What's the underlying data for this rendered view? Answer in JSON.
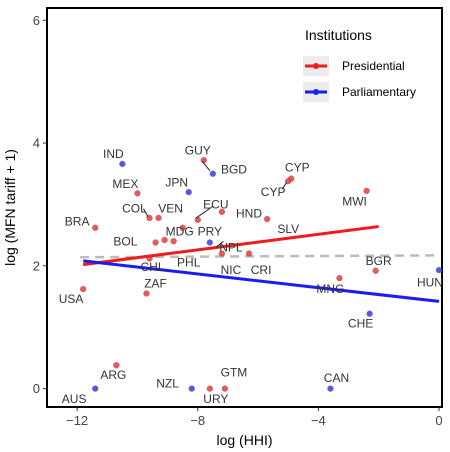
{
  "chart_data": {
    "type": "scatter",
    "xlabel": "log (HHI)",
    "ylabel": "log (MFN tariff + 1)",
    "xlim": [
      -13,
      0.1
    ],
    "ylim": [
      -0.3,
      6.2
    ],
    "xticks": [
      {
        "value": -12,
        "label": "−12"
      },
      {
        "value": -8,
        "label": "−8"
      },
      {
        "value": -4,
        "label": "−4"
      },
      {
        "value": 0,
        "label": "0"
      }
    ],
    "yticks": [
      {
        "value": 0,
        "label": "0"
      },
      {
        "value": 2,
        "label": "2"
      },
      {
        "value": 4,
        "label": "4"
      },
      {
        "value": 6,
        "label": "6"
      }
    ],
    "grid": false,
    "legend": {
      "title": "Institutions",
      "placement": "top-right",
      "entries": [
        {
          "name": "Presidential",
          "color": "#ee1c1c"
        },
        {
          "name": "Parliamentary",
          "color": "#1c1cee"
        }
      ]
    },
    "colors": {
      "Presidential": "#ee1c1c",
      "Parliamentary": "#1c1cee",
      "reference_line": "#bbbbbb"
    },
    "points": [
      {
        "label": "USA",
        "x": -11.8,
        "y": 1.62,
        "group": "Presidential",
        "lx": -12.2,
        "ly": 1.46
      },
      {
        "label": "BRA",
        "x": -11.4,
        "y": 2.62,
        "group": "Presidential",
        "lx": -12.0,
        "ly": 2.72
      },
      {
        "label": "ARG",
        "x": -10.7,
        "y": 0.38,
        "group": "Presidential",
        "lx": -10.8,
        "ly": 0.22
      },
      {
        "label": "AUS",
        "x": -11.4,
        "y": 0.0,
        "group": "Parliamentary",
        "lx": -12.1,
        "ly": -0.17
      },
      {
        "label": "IND",
        "x": -10.5,
        "y": 3.66,
        "group": "Parliamentary",
        "lx": -10.8,
        "ly": 3.82
      },
      {
        "label": "MEX",
        "x": -10.0,
        "y": 3.18,
        "group": "Presidential",
        "lx": -10.4,
        "ly": 3.33
      },
      {
        "label": "COL",
        "x": -9.6,
        "y": 2.78,
        "group": "Presidential",
        "lx": -10.1,
        "ly": 2.93
      },
      {
        "label": "VEN",
        "x": -9.3,
        "y": 2.78,
        "group": "Presidential",
        "lx": -8.9,
        "ly": 2.93
      },
      {
        "label": "JPN",
        "x": -8.3,
        "y": 3.2,
        "group": "Parliamentary",
        "lx": -8.7,
        "ly": 3.36
      },
      {
        "label": "GUY",
        "x": -7.8,
        "y": 3.72,
        "group": "Presidential",
        "lx": -8.0,
        "ly": 3.88
      },
      {
        "label": "BGD",
        "x": -7.5,
        "y": 3.5,
        "group": "Parliamentary",
        "lx": -6.8,
        "ly": 3.57
      },
      {
        "label": "ECU",
        "x": -8.0,
        "y": 2.75,
        "group": "Presidential",
        "lx": -7.4,
        "ly": 3.0
      },
      {
        "label": "HND",
        "x": -7.2,
        "y": 2.88,
        "group": "Presidential",
        "lx": -6.3,
        "ly": 2.85
      },
      {
        "label": "CYP",
        "x": -5.0,
        "y": 3.38,
        "group": "Presidential",
        "lx": -5.5,
        "ly": 3.2
      },
      {
        "label": "CYP",
        "x": -4.9,
        "y": 3.42,
        "group": "Presidential",
        "lx": -4.7,
        "ly": 3.6
      },
      {
        "label": "MWI",
        "x": -2.4,
        "y": 3.22,
        "group": "Presidential",
        "lx": -2.8,
        "ly": 3.05
      },
      {
        "label": "SLV",
        "x": -5.7,
        "y": 2.76,
        "group": "Presidential",
        "lx": -5.0,
        "ly": 2.6
      },
      {
        "label": "MDG",
        "x": -9.1,
        "y": 2.42,
        "group": "Presidential",
        "lx": -8.6,
        "ly": 2.56
      },
      {
        "label": "PRY",
        "x": -8.5,
        "y": 2.62,
        "group": "Presidential",
        "lx": -7.6,
        "ly": 2.56
      },
      {
        "label": "BOL",
        "x": -9.4,
        "y": 2.38,
        "group": "Presidential",
        "lx": -10.4,
        "ly": 2.4
      },
      {
        "label": "CHL",
        "x": -9.6,
        "y": 2.12,
        "group": "Presidential",
        "lx": -9.5,
        "ly": 1.98
      },
      {
        "label": "PHL",
        "x": -8.8,
        "y": 2.4,
        "group": "Presidential",
        "lx": -8.3,
        "ly": 2.05
      },
      {
        "label": "NPL",
        "x": -7.6,
        "y": 2.38,
        "group": "Parliamentary",
        "lx": -6.9,
        "ly": 2.3
      },
      {
        "label": "NIC",
        "x": -7.2,
        "y": 2.2,
        "group": "Presidential",
        "lx": -6.9,
        "ly": 1.93
      },
      {
        "label": "CRI",
        "x": -6.3,
        "y": 2.2,
        "group": "Presidential",
        "lx": -5.9,
        "ly": 1.93
      },
      {
        "label": "ZAF",
        "x": -9.7,
        "y": 1.55,
        "group": "Presidential",
        "lx": -9.4,
        "ly": 1.71
      },
      {
        "label": "NZL",
        "x": -8.2,
        "y": 0.0,
        "group": "Parliamentary",
        "lx": -9.0,
        "ly": 0.08
      },
      {
        "label": "GTM",
        "x": -7.1,
        "y": 0.0,
        "group": "Presidential",
        "lx": -6.8,
        "ly": 0.26
      },
      {
        "label": "URY",
        "x": -7.6,
        "y": 0.0,
        "group": "Presidential",
        "lx": -7.4,
        "ly": -0.17
      },
      {
        "label": "CAN",
        "x": -3.6,
        "y": 0.0,
        "group": "Parliamentary",
        "lx": -3.4,
        "ly": 0.17
      },
      {
        "label": "MNG",
        "x": -3.3,
        "y": 1.8,
        "group": "Presidential",
        "lx": -3.6,
        "ly": 1.62
      },
      {
        "label": "BGR",
        "x": -2.1,
        "y": 1.92,
        "group": "Presidential",
        "lx": -2.0,
        "ly": 2.08
      },
      {
        "label": "CHE",
        "x": -2.3,
        "y": 1.22,
        "group": "Parliamentary",
        "lx": -2.6,
        "ly": 1.06
      },
      {
        "label": "HUN",
        "x": 0.0,
        "y": 1.93,
        "group": "Parliamentary",
        "lx": -0.3,
        "ly": 1.73
      }
    ],
    "fit_lines": [
      {
        "group": "Presidential",
        "x": [
          -11.8,
          -2.0
        ],
        "y": [
          2.02,
          2.64
        ]
      },
      {
        "group": "Parliamentary",
        "x": [
          -11.8,
          0.0
        ],
        "y": [
          2.08,
          1.42
        ]
      }
    ],
    "reference_line": {
      "x": [
        -11.9,
        0.0
      ],
      "y": [
        2.14,
        2.17
      ]
    },
    "label_leaders": [
      {
        "x1": -9.65,
        "y1": 2.8,
        "x2": -9.8,
        "y2": 2.93
      },
      {
        "x1": -8.05,
        "y1": 2.78,
        "x2": -7.5,
        "y2": 2.97
      },
      {
        "x1": -7.85,
        "y1": 3.7,
        "x2": -7.6,
        "y2": 3.55
      },
      {
        "x1": -7.15,
        "y1": 2.4,
        "x2": -7.4,
        "y2": 2.3
      },
      {
        "x1": -5.05,
        "y1": 3.36,
        "x2": -5.2,
        "y2": 3.25
      }
    ]
  }
}
